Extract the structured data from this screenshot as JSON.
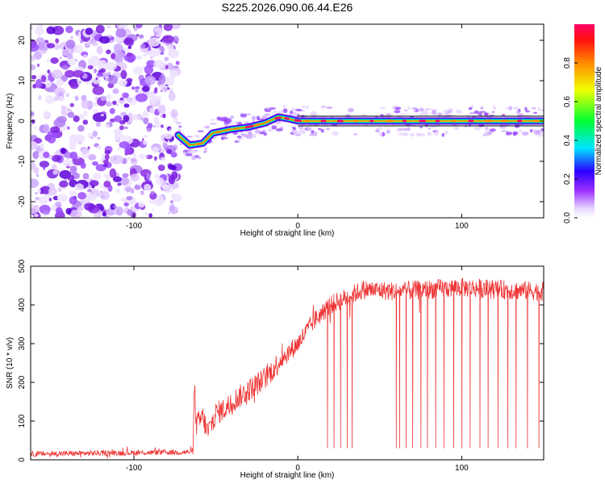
{
  "title": "S225.2026.090.06.44.E26",
  "chart_data": [
    {
      "type": "heatmap",
      "title": "S225.2026.090.06.44.E26",
      "xlabel": "Height of straight line (km)",
      "ylabel": "Frequency (Hz)",
      "xlim": [
        -163,
        150
      ],
      "ylim": [
        -24,
        24
      ],
      "x_ticks": [
        -100,
        0,
        100
      ],
      "y_ticks": [
        -20,
        -10,
        0,
        10,
        20
      ],
      "noise_region_x": [
        -163,
        -73
      ],
      "signal_start_x": -73,
      "tone_track": [
        {
          "x": -73,
          "f": -3.5
        },
        {
          "x": -66,
          "f": -6
        },
        {
          "x": -58,
          "f": -5.5
        },
        {
          "x": -52,
          "f": -3
        },
        {
          "x": -40,
          "f": -2
        },
        {
          "x": -30,
          "f": -1.5
        },
        {
          "x": -20,
          "f": -0.5
        },
        {
          "x": -12,
          "f": 1
        },
        {
          "x": -5,
          "f": 0.5
        },
        {
          "x": 0,
          "f": 0
        },
        {
          "x": 150,
          "f": 0
        }
      ],
      "colorbar": {
        "label": "Normalized spectral amplitude",
        "range": [
          0,
          1
        ],
        "ticks": [
          "0.0",
          "0.2",
          "0.4",
          "0.6",
          "0.8"
        ],
        "colors": [
          "#ffffff",
          "#e0c8ff",
          "#8800ff",
          "#0000ff",
          "#00ffff",
          "#00ff00",
          "#ffff00",
          "#ff8800",
          "#ff0000",
          "#ff0066"
        ]
      }
    },
    {
      "type": "line",
      "xlabel": "Height of straight line (km)",
      "ylabel": "SNR (10 * v/v)",
      "xlim": [
        -163,
        150
      ],
      "ylim": [
        0,
        500
      ],
      "x_ticks": [
        -100,
        0,
        100
      ],
      "y_ticks": [
        0,
        100,
        200,
        300,
        400,
        500
      ],
      "line_color": "#ee3333",
      "series": [
        {
          "name": "SNR",
          "trend_x": [
            -163,
            -64,
            -63,
            -62,
            -58,
            -55,
            -50,
            -45,
            -40,
            -30,
            -20,
            -10,
            0,
            10,
            20,
            30,
            40,
            60,
            80,
            100,
            120,
            150
          ],
          "trend_y": [
            15,
            20,
            190,
            90,
            110,
            70,
            120,
            130,
            150,
            180,
            210,
            260,
            300,
            360,
            400,
            420,
            440,
            435,
            440,
            445,
            440,
            435
          ],
          "dropout_x": [
            18,
            22,
            26,
            30,
            33,
            60,
            62,
            66,
            70,
            75,
            79,
            84,
            89,
            95,
            100,
            105,
            111,
            116,
            122,
            128,
            133,
            140,
            147
          ],
          "dropout_y": 30
        }
      ]
    }
  ]
}
